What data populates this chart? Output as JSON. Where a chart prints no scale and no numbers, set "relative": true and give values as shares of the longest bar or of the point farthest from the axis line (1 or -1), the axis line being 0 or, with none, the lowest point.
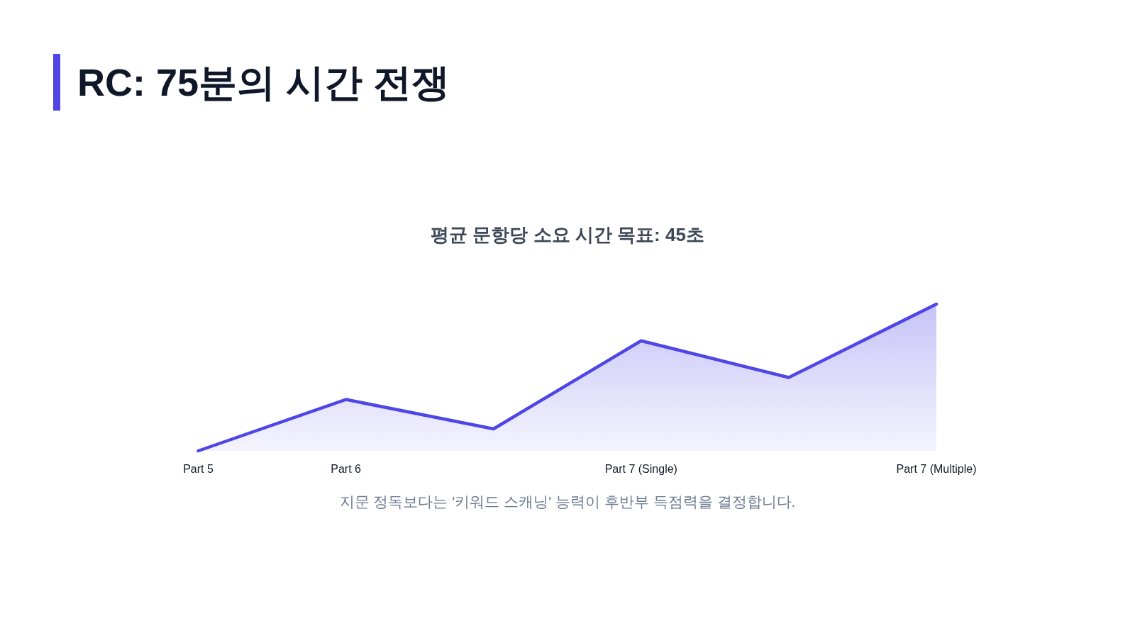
{
  "chart_data": {
    "type": "area",
    "title": "RC: 75분의 시간 전쟁",
    "subtitle": "평균 문항당 소요 시간 목표: 45초",
    "categories": [
      "Part 5",
      "Part 6",
      null,
      "Part 7 (Single)",
      null,
      "Part 7 (Multiple)"
    ],
    "series": [
      {
        "color": "#4f46e5",
        "values": [
          0,
          0.35,
          0.15,
          0.75,
          0.5,
          1
        ]
      }
    ],
    "relative": true,
    "annotations": [
      "지문 정독보다는 '키워드 스캐닝' 능력이 후반부 득점력을 결정합니다."
    ]
  }
}
